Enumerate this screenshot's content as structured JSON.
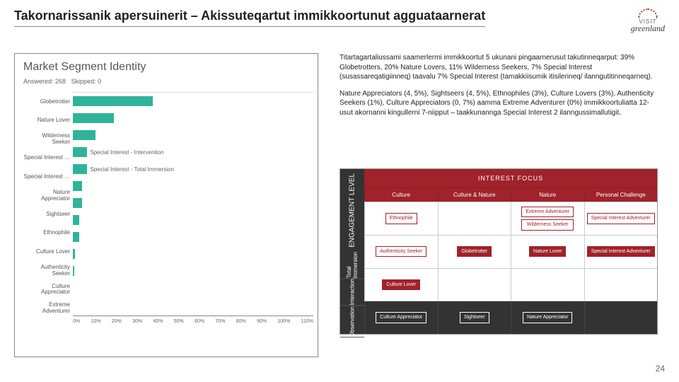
{
  "header": {
    "title": "Takornarissanik apersuinerit – Akissuteqartut immikkoortunut agguataarnerat",
    "logo_visit": "VISIT",
    "logo_brand": "greenland"
  },
  "chart": {
    "title": "Market Segment Identity",
    "answered_label": "Answered: 268",
    "skipped_label": "Skipped: 0",
    "categories": [
      "Globetrotter",
      "Nature Lover",
      "Wilderness Seeker",
      "Special Interest …",
      "Special Interest …",
      "Nature Appreciator",
      "Sightseer",
      "Ethnophile",
      "Culture Lover",
      "Authenticity Seeker",
      "Culture Appreciator",
      "Extreme Adventurer"
    ],
    "bar_sublabels": [
      "",
      "",
      "",
      "Special Interest - Intervention",
      "Special Interest - Total Immersion",
      "",
      "",
      "",
      "",
      "",
      "",
      ""
    ],
    "values": [
      39,
      20,
      11,
      7,
      7,
      4.5,
      4.5,
      3,
      3,
      1,
      0.7,
      0
    ],
    "max_pct": 110,
    "bar_colors": [
      "#2fb39a",
      "#2fb39a",
      "#2fb39a",
      "#2fb39a",
      "#2fb39a",
      "#2fb39a",
      "#2fb39a",
      "#2fb39a",
      "#2fb39a",
      "#2fb39a",
      "#2fb39a",
      "#2fb39a"
    ],
    "xticks": [
      "0%",
      "10%",
      "20%",
      "30%",
      "40%",
      "50%",
      "60%",
      "70%",
      "80%",
      "90%",
      "100%",
      "110%"
    ]
  },
  "text": {
    "p1": "Titartagartaliussami saamerlermi immikkoortut 5 ukunani pingaarnerusut takutinneqarput: 39% Globetrotters, 20% Nature Lovers, 11% Wilderness Seekers, 7% Special Interest (susassareqatigiinneq) taavalu 7% Special Interest (tamakkiisumik itisilerineq/ ilanngutitinneqarneq).",
    "p2": "Nature Appreciators (4, 5%), Sightseers (4, 5%), Ethnophiles (3%), Culture Lovers (3%), Authenticity Seekers (1%), Culture Appreciators (0, 7%) aamma Extreme Adventurer (0%) immikkoortuliatta 12-usut akornanni kingullerni 7-niipput – taakkunannga Special Interest 2 ilanngussimallutigit."
  },
  "matrix": {
    "side_main": "ENGAGEMENT LEVEL",
    "side_levels": [
      "Total Immersion",
      "Interaction",
      "Observation"
    ],
    "header_title": "INTEREST FOCUS",
    "cols": [
      "Culture",
      "Culture & Nature",
      "Nature",
      "Personal Challenge"
    ],
    "rows": [
      [
        {
          "t": "Ethnophile",
          "f": false
        },
        {
          "t": "",
          "f": false,
          "empty": true
        },
        {
          "t": "Wilderness Seeker",
          "f": false,
          "stack": true,
          "t2": "Extreme Adventurer"
        },
        {
          "t": "Special Interest Adventurer",
          "f": false
        }
      ],
      [
        {
          "t": "Authenticity Seeker",
          "f": false
        },
        {
          "t": "Globetrotter",
          "f": true
        },
        {
          "t": "Nature Lover",
          "f": true
        },
        {
          "t": "Special Interest Adventurer",
          "f": true
        }
      ],
      [
        {
          "t": "Culture Lover",
          "f": true
        },
        {
          "t": "",
          "f": false,
          "empty": true
        },
        {
          "t": "",
          "f": false,
          "empty": true
        },
        {
          "t": "",
          "f": false,
          "empty": true
        }
      ],
      [
        {
          "t": "Culture Appreciator",
          "f": false
        },
        {
          "t": "Sightseer",
          "f": false
        },
        {
          "t": "Nature Appreciator",
          "f": false
        },
        {
          "t": "",
          "f": false,
          "empty": true
        }
      ]
    ],
    "dark_row_index": 3
  },
  "page": "24"
}
